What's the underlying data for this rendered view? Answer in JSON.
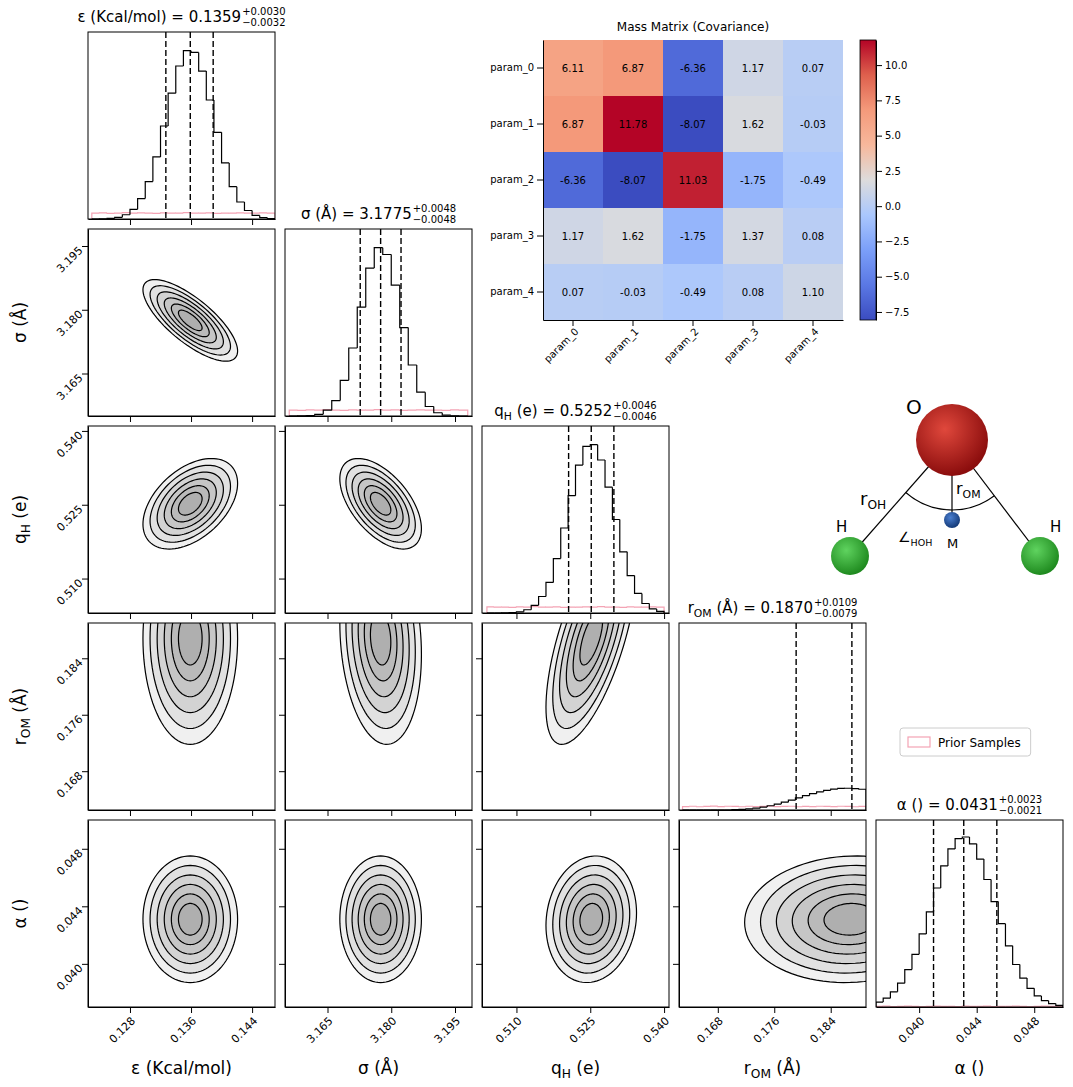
{
  "chart_data": [
    {
      "type": "corner",
      "title_separator": " = ",
      "legend": "right",
      "prior": {
        "name": "Prior Samples",
        "color": "#f4a3b4"
      },
      "contour_levels": [
        0.5,
        0.8,
        1.1,
        1.4,
        1.7,
        2.0
      ],
      "correlations": [
        [
          -0.75
        ],
        [
          0.45,
          -0.55
        ],
        [
          0.0,
          -0.15,
          0.65
        ],
        [
          0.0,
          0.0,
          0.1,
          0.05
        ]
      ],
      "parameters": [
        {
          "symbol": "ε",
          "unit": " (Kcal/mol)",
          "median": {
            "value": 0.1359,
            "label": "0.1359"
          },
          "upper": {
            "value": 0.003,
            "label": "+0.0030"
          },
          "lower": {
            "value": -0.0032,
            "label": "−0.0032"
          },
          "lim": [
            0.1225,
            0.147
          ],
          "ticks": [
            0.128,
            0.136,
            0.144
          ],
          "density": {
            "center": 0.1359,
            "sd": 0.0031
          },
          "hist": {
            "ylim": [
              0,
              1.1
            ],
            "bins": [
              0.123,
              0.124,
              0.125,
              0.126,
              0.127,
              0.128,
              0.129,
              0.13,
              0.131,
              0.132,
              0.133,
              0.134,
              0.135,
              0.136,
              0.137,
              0.138,
              0.139,
              0.14,
              0.141,
              0.142,
              0.143,
              0.144,
              0.145,
              0.146,
              0.147
            ],
            "counts": [
              0.0,
              0.001,
              0.004,
              0.01,
              0.025,
              0.057,
              0.12,
              0.22,
              0.365,
              0.547,
              0.74,
              0.9,
              0.99,
              0.98,
              0.87,
              0.7,
              0.51,
              0.33,
              0.19,
              0.1,
              0.05,
              0.021,
              0.008,
              0.003
            ],
            "prior_counts": [
              0.034,
              0.036,
              0.033,
              0.035,
              0.037,
              0.034,
              0.036,
              0.035,
              0.033,
              0.036,
              0.034,
              0.035,
              0.037,
              0.034,
              0.035,
              0.036,
              0.033,
              0.035,
              0.034,
              0.036,
              0.035,
              0.034,
              0.036,
              0.035
            ]
          }
        },
        {
          "symbol": "σ",
          "unit": " (Å)",
          "median": {
            "value": 3.1775,
            "label": "3.1775"
          },
          "upper": {
            "value": 0.0048,
            "label": "+0.0048"
          },
          "lower": {
            "value": -0.0048,
            "label": "−0.0048"
          },
          "lim": [
            3.155,
            3.199
          ],
          "ticks": [
            3.165,
            {
              "value": 3.18,
              "label": "3.180"
            },
            3.195
          ],
          "density": {
            "center": 3.1775,
            "sd": 0.0048
          },
          "hist": {
            "ylim": [
              0,
              1.1
            ],
            "bins": [
              3.156,
              3.158,
              3.16,
              3.162,
              3.164,
              3.166,
              3.168,
              3.17,
              3.172,
              3.174,
              3.176,
              3.178,
              3.18,
              3.182,
              3.184,
              3.186,
              3.188,
              3.19,
              3.192,
              3.194,
              3.196,
              3.198
            ],
            "counts": [
              0.0,
              0.001,
              0.003,
              0.01,
              0.034,
              0.091,
              0.21,
              0.4,
              0.64,
              0.87,
              0.99,
              0.95,
              0.77,
              0.52,
              0.3,
              0.14,
              0.056,
              0.019,
              0.005,
              0.001,
              0.0
            ],
            "prior_counts": [
              0.035,
              0.033,
              0.036,
              0.034,
              0.037,
              0.035,
              0.033,
              0.036,
              0.034,
              0.035,
              0.037,
              0.034,
              0.036,
              0.033,
              0.035,
              0.036,
              0.034,
              0.035,
              0.033,
              0.036,
              0.035
            ]
          }
        },
        {
          "symbol": "q",
          "subscript": "H",
          "unit": " (e)",
          "median": {
            "value": 0.5252,
            "label": "0.5252"
          },
          "upper": {
            "value": 0.0046,
            "label": "+0.0046"
          },
          "lower": {
            "value": -0.0046,
            "label": "−0.0046"
          },
          "lim": [
            0.503,
            0.541
          ],
          "ticks": [
            {
              "value": 0.51,
              "label": "0.510"
            },
            0.525,
            {
              "value": 0.54,
              "label": "0.540"
            }
          ],
          "density": {
            "center": 0.5252,
            "sd": 0.0046
          },
          "hist": {
            "ylim": [
              0,
              1.1
            ],
            "bins": [
              0.504,
              0.5055,
              0.507,
              0.5085,
              0.51,
              0.5115,
              0.513,
              0.5145,
              0.516,
              0.5175,
              0.519,
              0.5205,
              0.522,
              0.5235,
              0.525,
              0.5265,
              0.528,
              0.5295,
              0.531,
              0.5325,
              0.534,
              0.5355,
              0.537,
              0.5385,
              0.54
            ],
            "counts": [
              0.0,
              0.0,
              0.001,
              0.002,
              0.007,
              0.019,
              0.045,
              0.097,
              0.18,
              0.32,
              0.5,
              0.69,
              0.87,
              0.98,
              0.99,
              0.9,
              0.74,
              0.55,
              0.36,
              0.22,
              0.115,
              0.056,
              0.024,
              0.01
            ],
            "prior_counts": [
              0.036,
              0.034,
              0.035,
              0.033,
              0.036,
              0.035,
              0.037,
              0.034,
              0.035,
              0.036,
              0.033,
              0.035,
              0.034,
              0.036,
              0.035,
              0.037,
              0.034,
              0.035,
              0.033,
              0.036,
              0.034,
              0.035,
              0.036,
              0.034
            ]
          }
        },
        {
          "symbol": "r",
          "subscript": "OM",
          "unit": " (Å)",
          "median": {
            "value": 0.187,
            "label": "0.1870"
          },
          "upper": {
            "value": 0.0109,
            "label": "+0.0109"
          },
          "lower": {
            "value": -0.0079,
            "label": "−0.0079"
          },
          "lim": [
            0.1625,
            0.189
          ],
          "ticks": [
            0.168,
            0.176,
            0.184
          ],
          "density": {
            "center": 0.1868,
            "sd": 0.0075
          },
          "hist": {
            "ylim": [
              0,
              1.1
            ],
            "bins": [
              0.163,
              0.164,
              0.165,
              0.166,
              0.167,
              0.168,
              0.169,
              0.17,
              0.171,
              0.172,
              0.173,
              0.174,
              0.175,
              0.176,
              0.177,
              0.178,
              0.179,
              0.18,
              0.181,
              0.182,
              0.183,
              0.184,
              0.185,
              0.186,
              0.187,
              0.188,
              0.189
            ],
            "counts": [
              0,
              0,
              0,
              0,
              0,
              0,
              0,
              0.002,
              0.004,
              0.007,
              0.011,
              0.017,
              0.025,
              0.035,
              0.046,
              0.058,
              0.071,
              0.084,
              0.096,
              0.107,
              0.116,
              0.123,
              0.127,
              0.128,
              0.126,
              0.122
            ],
            "prior_counts": [
              0.02,
              0.022,
              0.019,
              0.021,
              0.023,
              0.02,
              0.022,
              0.021,
              0.019,
              0.022,
              0.02,
              0.021,
              0.023,
              0.02,
              0.021,
              0.022,
              0.019,
              0.021,
              0.02,
              0.022,
              0.021,
              0.02,
              0.022,
              0.021,
              0.019,
              0.021
            ]
          }
        },
        {
          "symbol": "α",
          "unit": " ()",
          "median": {
            "value": 0.0431,
            "label": "0.0431"
          },
          "upper": {
            "value": 0.0023,
            "label": "+0.0023"
          },
          "lower": {
            "value": -0.0021,
            "label": "−0.0021"
          },
          "lim": [
            0.037,
            0.05
          ],
          "ticks": [
            {
              "value": 0.04,
              "label": "0.040"
            },
            0.044,
            0.048
          ],
          "density": {
            "center": 0.0431,
            "sd": 0.0022
          },
          "hist": {
            "ylim": [
              0,
              1.1
            ],
            "bins": [
              0.037,
              0.0375,
              0.038,
              0.0385,
              0.039,
              0.0395,
              0.04,
              0.0405,
              0.041,
              0.0415,
              0.042,
              0.0425,
              0.043,
              0.0435,
              0.044,
              0.0445,
              0.045,
              0.0455,
              0.046,
              0.0465,
              0.047,
              0.0475,
              0.048,
              0.0485,
              0.049,
              0.0495,
              0.05
            ],
            "counts": [
              0.029,
              0.052,
              0.089,
              0.14,
              0.22,
              0.31,
              0.43,
              0.56,
              0.7,
              0.83,
              0.93,
              0.99,
              1.0,
              0.96,
              0.87,
              0.75,
              0.62,
              0.49,
              0.36,
              0.25,
              0.17,
              0.11,
              0.065,
              0.037,
              0.02,
              0.01
            ],
            "prior_counts": [
              0.004,
              0.005,
              0.003,
              0.004,
              0.005,
              0.004,
              0.003,
              0.004,
              0.005,
              0.004,
              0.004,
              0.003,
              0.005,
              0.004,
              0.004,
              0.005,
              0.003,
              0.004,
              0.004,
              0.005,
              0.004,
              0.003,
              0.004,
              0.005,
              0.004,
              0.004
            ]
          }
        }
      ]
    },
    {
      "type": "heatmap",
      "title": "Mass Matrix (Covariance)",
      "x_categories": [
        "param_0",
        "param_1",
        "param_2",
        "param_3",
        "param_4"
      ],
      "y_categories": [
        "param_0",
        "param_1",
        "param_2",
        "param_3",
        "param_4"
      ],
      "values": [
        [
          6.11,
          6.87,
          -6.36,
          1.17,
          0.07
        ],
        [
          6.87,
          11.78,
          -8.07,
          1.62,
          -0.03
        ],
        [
          -6.36,
          -8.07,
          11.03,
          -1.75,
          -0.49
        ],
        [
          1.17,
          1.62,
          -1.75,
          1.37,
          0.08
        ],
        [
          0.07,
          -0.03,
          -0.49,
          0.08,
          1.1
        ]
      ],
      "value_labels": [
        [
          "6.11",
          "6.87",
          "-6.36",
          "1.17",
          "0.07"
        ],
        [
          "6.87",
          "11.78",
          "-8.07",
          "1.62",
          "-0.03"
        ],
        [
          "-6.36",
          "-8.07",
          "11.03",
          "-1.75",
          "-0.49"
        ],
        [
          "1.17",
          "1.62",
          "-1.75",
          "1.37",
          "0.08"
        ],
        [
          "0.07",
          "-0.03",
          "-0.49",
          "0.08",
          "1.10"
        ]
      ],
      "colorbar": {
        "range": [
          -8.07,
          11.78
        ],
        "ticks": [
          {
            "value": -7.5,
            "label": "−7.5"
          },
          {
            "value": -5,
            "label": "−5.0"
          },
          {
            "value": -2.5,
            "label": "−2.5"
          },
          {
            "value": 0,
            "label": "0.0"
          },
          2.5,
          {
            "value": 5,
            "label": "5.0"
          },
          7.5,
          {
            "value": 10,
            "label": "10.0"
          }
        ],
        "colors": [
          "#3b4cc0",
          "#5a78e4",
          "#7b9ff9",
          "#aac7fd",
          "#dddcdc",
          "#f7b89c",
          "#f49a7b",
          "#de604d",
          "#b40426"
        ]
      }
    }
  ],
  "diagram": {
    "nodes": [
      {
        "label": "O"
      },
      {
        "label": "H"
      },
      {
        "label": "H"
      },
      {
        "label": "M"
      }
    ],
    "distances": [
      {
        "symbol": "r",
        "subscript": "OH"
      },
      {
        "symbol": "r",
        "subscript": "OM"
      }
    ],
    "angle": {
      "symbol": "∠",
      "subscript": "HOH"
    }
  }
}
